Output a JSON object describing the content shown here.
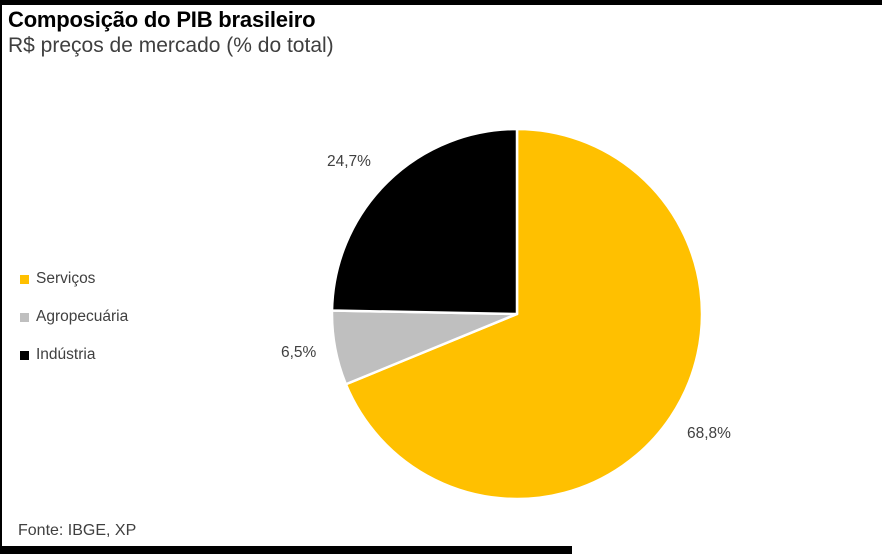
{
  "header": {
    "title": "Composição do PIB brasileiro",
    "subtitle": "R$ preços de mercado (% do total)"
  },
  "chart_data": {
    "type": "pie",
    "title": "Composição do PIB brasileiro",
    "subtitle": "R$ preços de mercado (% do total)",
    "unit": "% do total",
    "start_angle_deg": 0,
    "direction": "clockwise",
    "legend_position": "left",
    "slices": [
      {
        "label": "Serviços",
        "value": 68.8,
        "display": "68,8%",
        "color": "#FFC000"
      },
      {
        "label": "Agropecuária",
        "value": 6.5,
        "display": "6,5%",
        "color": "#BFBFBF"
      },
      {
        "label": "Indústria",
        "value": 24.7,
        "display": "24,7%",
        "color": "#000000"
      }
    ]
  },
  "footer": {
    "source": "Fonte: IBGE, XP"
  },
  "style": {
    "accent_bar_color": "#000000",
    "background": "#FFFFFF",
    "slice_border_color": "#FFFFFF",
    "label_color": "#404040"
  }
}
